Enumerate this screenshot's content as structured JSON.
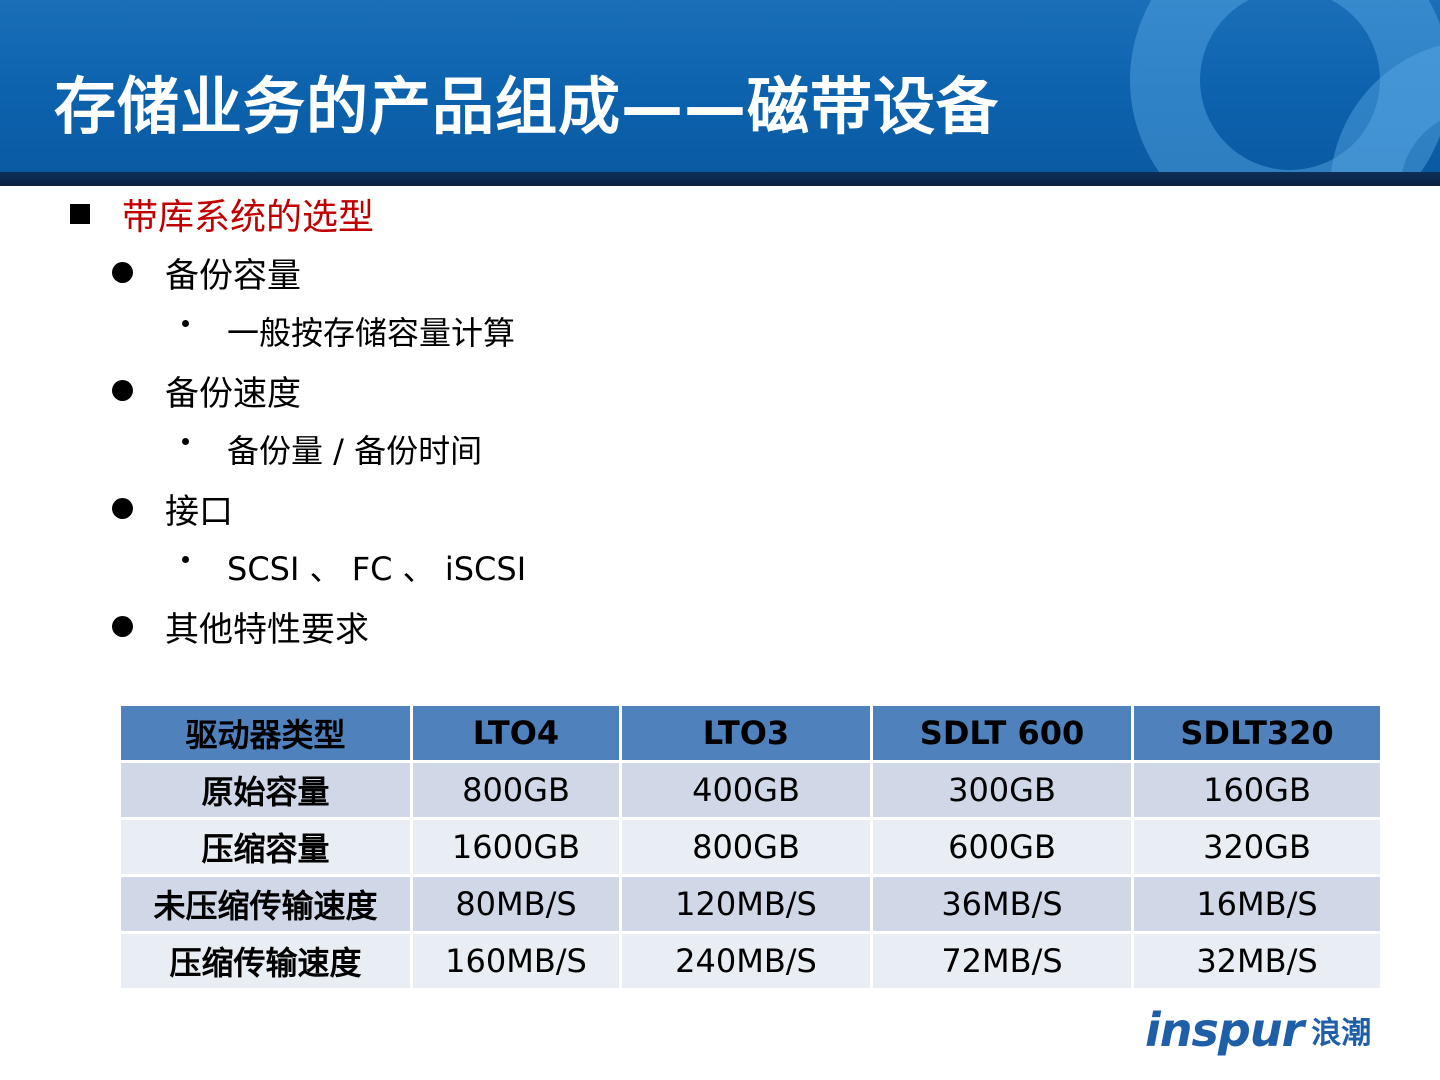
{
  "title": "存储业务的产品组成——磁带设备",
  "outline": {
    "heading": "带库系统的选型",
    "items": [
      {
        "label": "备份容量",
        "sub": "一般按存储容量计算"
      },
      {
        "label": "备份速度",
        "sub": "备份量 / 备份时间"
      },
      {
        "label": "接口",
        "sub": "SCSI 、 FC 、 iSCSI"
      },
      {
        "label": "其他特性要求"
      }
    ]
  },
  "table": {
    "headers": [
      "驱动器类型",
      "LTO4",
      "LTO3",
      "SDLT 600",
      "SDLT320"
    ],
    "rows": [
      [
        "原始容量",
        "800GB",
        "400GB",
        "300GB",
        "160GB"
      ],
      [
        "压缩容量",
        "1600GB",
        "800GB",
        "600GB",
        "320GB"
      ],
      [
        "未压缩传输速度",
        "80MB/S",
        "120MB/S",
        "36MB/S",
        "16MB/S"
      ],
      [
        "压缩传输速度",
        "160MB/S",
        "240MB/S",
        "72MB/S",
        "32MB/S"
      ]
    ]
  },
  "logo": {
    "en": "inspur",
    "cn": "浪潮"
  },
  "colors": {
    "banner": "#0d63ae",
    "heading": "#c00000",
    "table_header": "#4f81bd",
    "row_a": "#d0d8e8",
    "row_b": "#e9edf4",
    "logo": "#1f5fa8"
  }
}
